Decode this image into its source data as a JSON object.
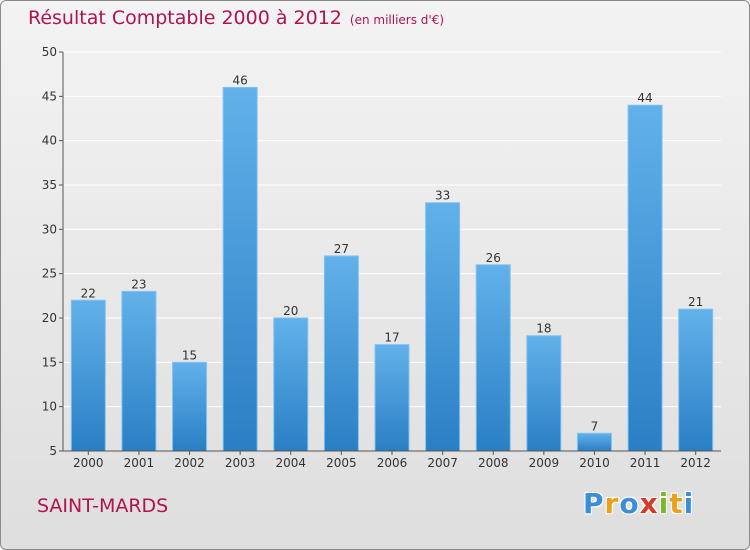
{
  "chart_data": {
    "type": "bar",
    "title": "Résultat Comptable 2000 à 2012",
    "subtitle": "(en milliers d'€)",
    "categories": [
      "2000",
      "2001",
      "2002",
      "2003",
      "2004",
      "2005",
      "2006",
      "2007",
      "2008",
      "2009",
      "2010",
      "2011",
      "2012"
    ],
    "values": [
      22,
      23,
      15,
      46,
      20,
      27,
      17,
      33,
      26,
      18,
      7,
      44,
      21
    ],
    "ylim": [
      5,
      50
    ],
    "yticks": [
      5,
      10,
      15,
      20,
      25,
      30,
      35,
      40,
      45,
      50
    ],
    "grid": true,
    "xlabel": "",
    "ylabel": ""
  },
  "commune": "SAINT-MARDS",
  "brand": {
    "letters": [
      "P",
      "r",
      "o",
      "x",
      "i",
      "t",
      "i"
    ],
    "colors": [
      "#3a8fd8",
      "#e8a21a",
      "#3a8fd8",
      "#d63a2a",
      "#7ab82a",
      "#e8a21a",
      "#3a8fd8"
    ]
  },
  "colors": {
    "bar_top": "#62b1ea",
    "bar_bottom": "#2a7fc4",
    "bar_stroke": "#7fc3f2",
    "title": "#b0134f",
    "grid": "#ffffff",
    "axis_text": "#333333"
  }
}
